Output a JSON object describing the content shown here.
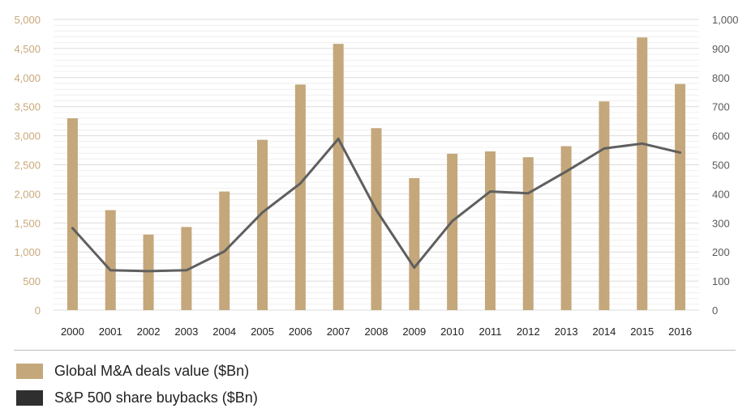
{
  "colors": {
    "bars": "#c4a77b",
    "line": "#5f5f5f",
    "line_swatch": "#2f2f2f",
    "grid": "#e6e6e6"
  },
  "legend": {
    "bars_label": "Global M&A deals value ($Bn)",
    "line_label": "S&P 500 share buybacks ($Bn)"
  },
  "chart_data": {
    "type": "bar",
    "categories": [
      "2000",
      "2001",
      "2002",
      "2003",
      "2004",
      "2005",
      "2006",
      "2007",
      "2008",
      "2009",
      "2010",
      "2011",
      "2012",
      "2013",
      "2014",
      "2015",
      "2016"
    ],
    "series": [
      {
        "name": "Global M&A deals value ($Bn)",
        "type": "bar",
        "axis": "left",
        "values": [
          3300,
          1720,
          1300,
          1430,
          2040,
          2930,
          3880,
          4580,
          3130,
          2270,
          2690,
          2730,
          2630,
          2820,
          3590,
          4690,
          3890
        ]
      },
      {
        "name": "S&P 500 share buybacks ($Bn)",
        "type": "line",
        "axis": "right",
        "values": [
          282,
          137,
          134,
          137,
          202,
          336,
          436,
          589,
          344,
          146,
          306,
          408,
          402,
          477,
          556,
          573,
          542
        ]
      }
    ],
    "ylim": [
      0,
      5000
    ],
    "y2lim": [
      0,
      1000
    ],
    "yticks": [
      "0",
      "500",
      "1,000",
      "1,500",
      "2,000",
      "2,500",
      "3,000",
      "3,500",
      "4,000",
      "4,500",
      "5,000"
    ],
    "y2ticks": [
      "0",
      "100",
      "200",
      "300",
      "400",
      "500",
      "600",
      "700",
      "800",
      "900",
      "1,000"
    ],
    "grid": true,
    "legend_position": "bottom-left"
  }
}
